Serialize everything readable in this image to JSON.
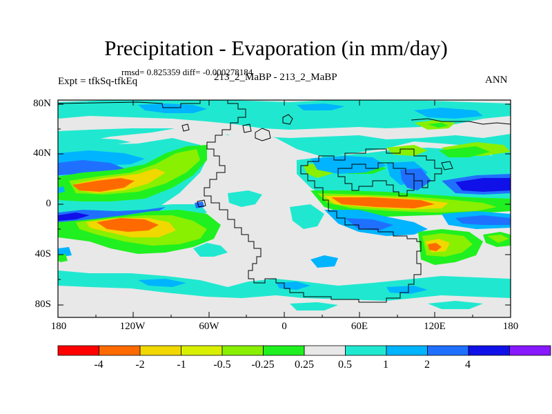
{
  "title": "Precipitation - Evaporation (in mm/day)",
  "stats": "rmsd= 0.825359  diff= -0.000278184",
  "left_label": "Expt = tfkSq-tfkEq",
  "center_label": "213_2_MaBP - 213_2_MaBP",
  "right_label": "ANN",
  "lat_labels": [
    "80N",
    "40N",
    "0",
    "40S",
    "80S"
  ],
  "lon_labels": [
    "180",
    "120W",
    "60W",
    "0",
    "60E",
    "120E",
    "180"
  ],
  "colorbar": {
    "colors": [
      "#ff0000",
      "#ff6a00",
      "#f0d800",
      "#d8f000",
      "#88f000",
      "#20f020",
      "#e8e8e8",
      "#20e8d0",
      "#00b4ff",
      "#2070ff",
      "#1010e8",
      "#8818ff"
    ],
    "labels": [
      "-4",
      "-2",
      "-1",
      "-0.5",
      "-0.25",
      "0.25",
      "0.5",
      "1",
      "2",
      "4"
    ]
  }
}
